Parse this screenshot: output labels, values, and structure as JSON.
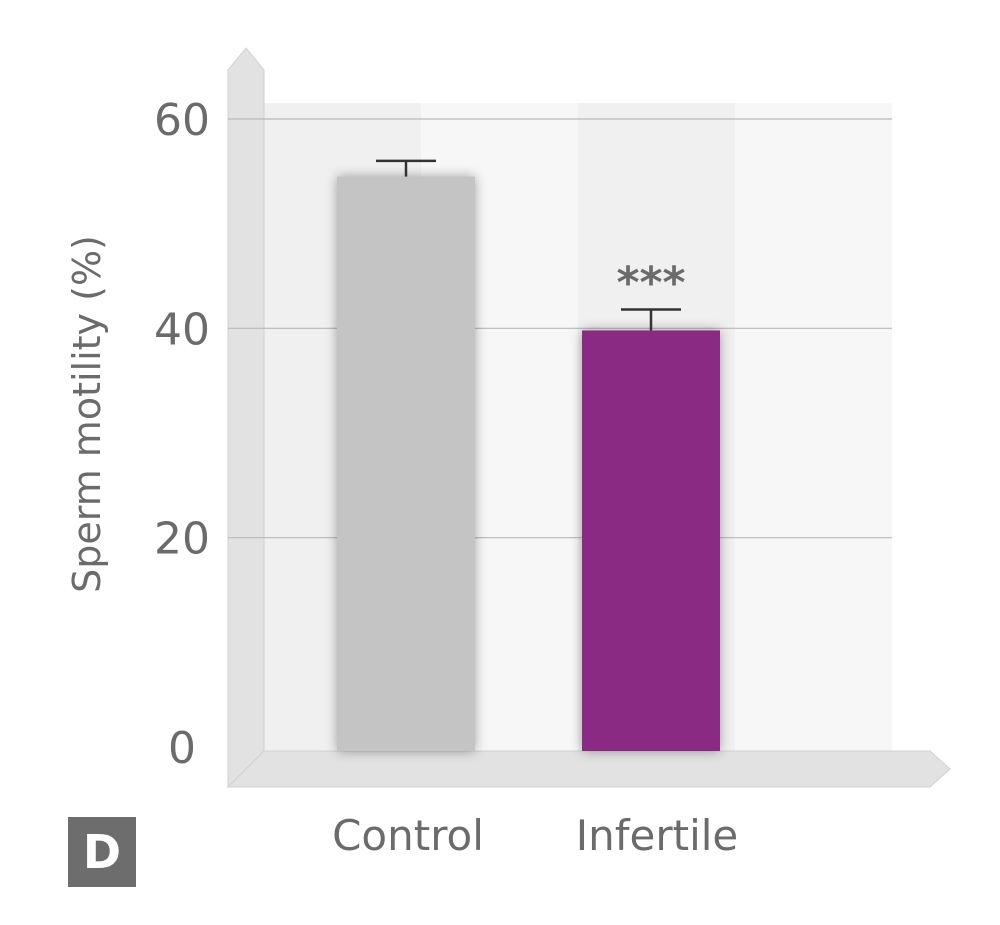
{
  "panel_label": "D",
  "chart_data": {
    "type": "bar",
    "categories": [
      "Control",
      "Infertile"
    ],
    "values": [
      54.5,
      39.8
    ],
    "errors": [
      1.5,
      2.0
    ],
    "annotations": [
      "",
      "***"
    ],
    "ylabel": "Sperm motility (%)",
    "xlabel": "",
    "yticks": [
      "0",
      "20",
      "40",
      "60"
    ],
    "ylim": [
      0,
      60
    ],
    "colors": [
      "#c4c4c4",
      "#8b2a82"
    ],
    "grid": true,
    "style": "3d-box"
  }
}
